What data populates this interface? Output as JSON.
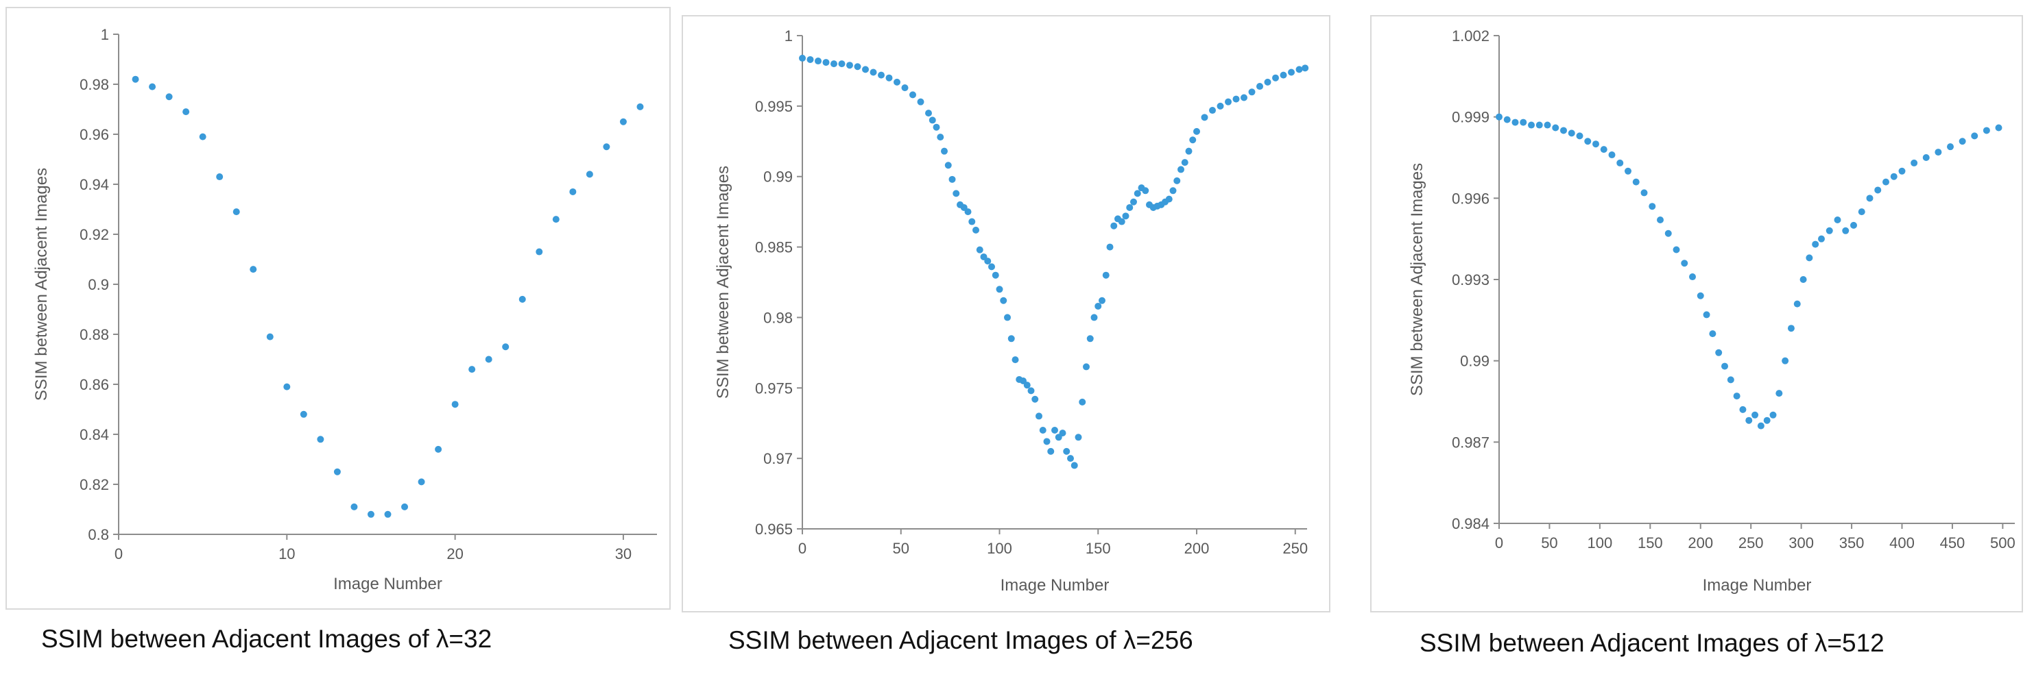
{
  "captions": [
    "SSIM between Adjacent Images of λ=32",
    "SSIM between Adjacent Images of λ=256",
    "SSIM between Adjacent Images of λ=512"
  ],
  "style": {
    "marker_color": "#3a9ad9",
    "axis_color": "#8c8c8c",
    "text_color": "#595959",
    "frame_color": "#d9d9d9"
  },
  "chart_data": [
    {
      "type": "scatter",
      "title": "",
      "xlabel": "Image Number",
      "ylabel": "SSIM between Adjacent Images",
      "xlim": [
        0,
        32
      ],
      "ylim": [
        0.8,
        1.0
      ],
      "xticks": [
        0,
        10,
        20,
        30
      ],
      "yticks": [
        0.8,
        0.82,
        0.84,
        0.86,
        0.88,
        0.9,
        0.92,
        0.94,
        0.96,
        0.98,
        1
      ],
      "ytick_labels": [
        "0.8",
        "0.82",
        "0.84",
        "0.86",
        "0.88",
        "0.9",
        "0.92",
        "0.94",
        "0.96",
        "0.98",
        "1"
      ],
      "grid": false,
      "legend": "none",
      "series": [
        {
          "x": [
            1,
            2,
            3,
            4,
            5,
            6,
            7,
            8,
            9,
            10,
            11,
            12,
            13,
            14,
            15,
            16,
            17,
            18,
            19,
            20,
            21,
            22,
            23,
            24,
            25,
            26,
            27,
            28,
            29,
            30,
            31
          ],
          "y": [
            0.982,
            0.979,
            0.975,
            0.969,
            0.959,
            0.943,
            0.929,
            0.906,
            0.879,
            0.859,
            0.848,
            0.838,
            0.825,
            0.811,
            0.808,
            0.808,
            0.811,
            0.821,
            0.834,
            0.852,
            0.866,
            0.87,
            0.875,
            0.894,
            0.913,
            0.926,
            0.937,
            0.944,
            0.955,
            0.965,
            0.971
          ]
        }
      ]
    },
    {
      "type": "scatter",
      "title": "",
      "xlabel": "Image Number",
      "ylabel": "SSIM between Adjacent Images",
      "xlim": [
        0,
        256
      ],
      "ylim": [
        0.965,
        1.0
      ],
      "xticks": [
        0,
        50,
        100,
        150,
        200,
        250
      ],
      "yticks": [
        0.965,
        0.97,
        0.975,
        0.98,
        0.985,
        0.99,
        0.995,
        1
      ],
      "ytick_labels": [
        "0.965",
        "0.97",
        "0.975",
        "0.98",
        "0.985",
        "0.99",
        "0.995",
        "1"
      ],
      "grid": false,
      "legend": "none",
      "series": [
        {
          "x": [
            0,
            4,
            8,
            12,
            16,
            20,
            24,
            28,
            32,
            36,
            40,
            44,
            48,
            52,
            56,
            60,
            64,
            66,
            68,
            70,
            72,
            74,
            76,
            78,
            80,
            82,
            84,
            86,
            88,
            90,
            92,
            94,
            96,
            98,
            100,
            102,
            104,
            106,
            108,
            110,
            112,
            114,
            116,
            118,
            120,
            122,
            124,
            126,
            128,
            130,
            132,
            134,
            136,
            138,
            140,
            142,
            144,
            146,
            148,
            150,
            152,
            154,
            156,
            158,
            160,
            162,
            164,
            166,
            168,
            170,
            172,
            174,
            176,
            178,
            180,
            182,
            184,
            186,
            188,
            190,
            192,
            194,
            196,
            198,
            200,
            204,
            208,
            212,
            216,
            220,
            224,
            228,
            232,
            236,
            240,
            244,
            248,
            252,
            255
          ],
          "y": [
            0.9984,
            0.9983,
            0.9982,
            0.9981,
            0.998,
            0.998,
            0.9979,
            0.9978,
            0.9976,
            0.9974,
            0.9972,
            0.997,
            0.9967,
            0.9963,
            0.9958,
            0.9953,
            0.9945,
            0.994,
            0.9935,
            0.9928,
            0.9918,
            0.9908,
            0.9898,
            0.9888,
            0.988,
            0.9878,
            0.9875,
            0.9868,
            0.9862,
            0.9848,
            0.9843,
            0.984,
            0.9836,
            0.983,
            0.982,
            0.9812,
            0.98,
            0.9785,
            0.977,
            0.9756,
            0.9755,
            0.9752,
            0.9748,
            0.9742,
            0.973,
            0.972,
            0.9712,
            0.9705,
            0.972,
            0.9715,
            0.9718,
            0.9705,
            0.97,
            0.9695,
            0.9715,
            0.974,
            0.9765,
            0.9785,
            0.98,
            0.9808,
            0.9812,
            0.983,
            0.985,
            0.9865,
            0.987,
            0.9868,
            0.9872,
            0.9878,
            0.9882,
            0.9888,
            0.9892,
            0.989,
            0.988,
            0.9878,
            0.9879,
            0.988,
            0.9882,
            0.9884,
            0.989,
            0.9897,
            0.9905,
            0.991,
            0.9918,
            0.9926,
            0.9932,
            0.9942,
            0.9947,
            0.995,
            0.9953,
            0.9955,
            0.9956,
            0.996,
            0.9964,
            0.9967,
            0.997,
            0.9972,
            0.9974,
            0.9976,
            0.9977
          ]
        }
      ]
    },
    {
      "type": "scatter",
      "title": "",
      "xlabel": "Image Number",
      "ylabel": "SSIM between Adjacent Images",
      "xlim": [
        0,
        512
      ],
      "ylim": [
        0.984,
        1.002
      ],
      "xticks": [
        0,
        50,
        100,
        150,
        200,
        250,
        300,
        350,
        400,
        450,
        500
      ],
      "yticks": [
        0.984,
        0.987,
        0.99,
        0.993,
        0.996,
        0.999,
        1.002
      ],
      "ytick_labels": [
        "0.984",
        "0.987",
        "0.99",
        "0.993",
        "0.996",
        "0.999",
        "1.002"
      ],
      "grid": false,
      "legend": "none",
      "series": [
        {
          "x": [
            0,
            8,
            16,
            24,
            32,
            40,
            48,
            56,
            64,
            72,
            80,
            88,
            96,
            104,
            112,
            120,
            128,
            136,
            144,
            152,
            160,
            168,
            176,
            184,
            192,
            200,
            206,
            212,
            218,
            224,
            230,
            236,
            242,
            248,
            254,
            260,
            266,
            272,
            278,
            284,
            290,
            296,
            302,
            308,
            314,
            320,
            328,
            336,
            344,
            352,
            360,
            368,
            376,
            384,
            392,
            400,
            412,
            424,
            436,
            448,
            460,
            472,
            484,
            496
          ],
          "y": [
            0.999,
            0.9989,
            0.9988,
            0.9988,
            0.9987,
            0.9987,
            0.9987,
            0.9986,
            0.9985,
            0.9984,
            0.9983,
            0.9981,
            0.998,
            0.9978,
            0.9976,
            0.9973,
            0.997,
            0.9966,
            0.9962,
            0.9957,
            0.9952,
            0.9947,
            0.9941,
            0.9936,
            0.9931,
            0.9924,
            0.9917,
            0.991,
            0.9903,
            0.9898,
            0.9893,
            0.9887,
            0.9882,
            0.9878,
            0.988,
            0.9876,
            0.9878,
            0.988,
            0.9888,
            0.99,
            0.9912,
            0.9921,
            0.993,
            0.9938,
            0.9943,
            0.9945,
            0.9948,
            0.9952,
            0.9948,
            0.995,
            0.9955,
            0.996,
            0.9963,
            0.9966,
            0.9968,
            0.997,
            0.9973,
            0.9975,
            0.9977,
            0.9979,
            0.9981,
            0.9983,
            0.9985,
            0.9986
          ]
        }
      ]
    }
  ]
}
